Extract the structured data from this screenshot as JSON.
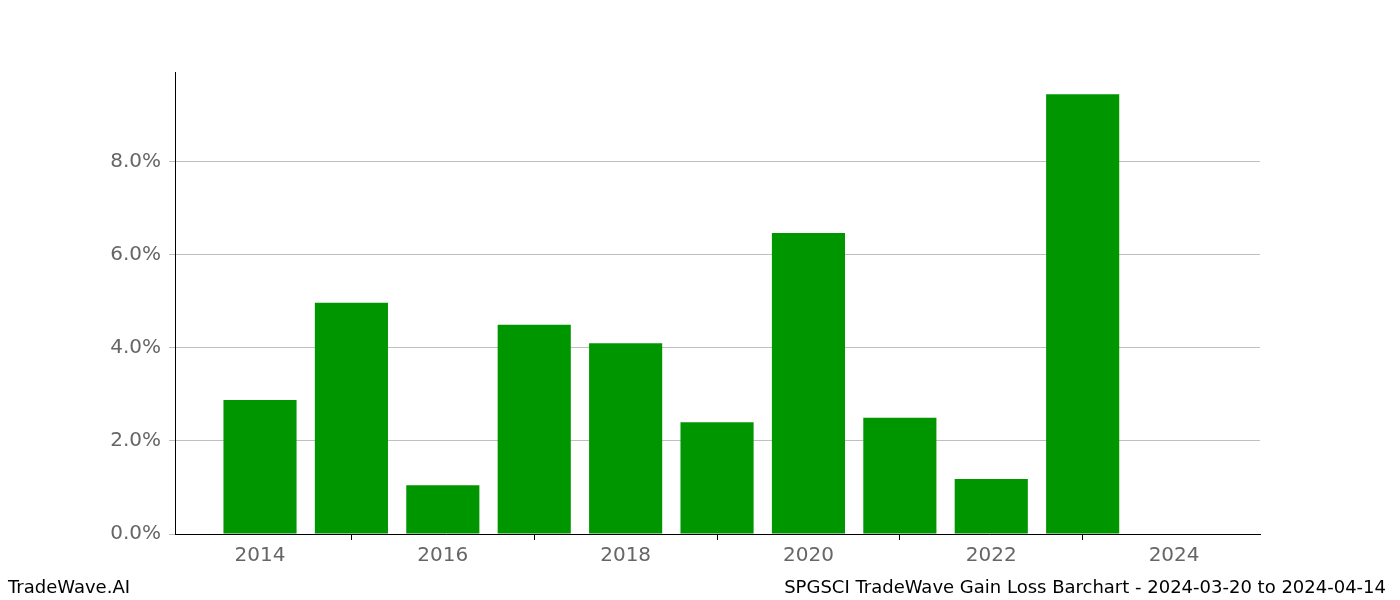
{
  "chart_data": {
    "type": "bar",
    "title": "SPGSCI TradeWave Gain Loss Barchart - 2024-03-20 to 2024-04-14",
    "annotations": [
      "TradeWave.AI"
    ],
    "x": [
      2014,
      2015,
      2016,
      2017,
      2018,
      2019,
      2020,
      2021,
      2022,
      2023
    ],
    "values": [
      2.88,
      4.97,
      1.05,
      4.5,
      4.1,
      2.4,
      6.47,
      2.5,
      1.18,
      9.45
    ],
    "color": "#009600",
    "xlim": [
      2013.07,
      2024.94
    ],
    "xticks": [
      2014,
      2016,
      2018,
      2020,
      2022,
      2024
    ],
    "ylim": [
      0,
      9.93
    ],
    "yticks": [
      {
        "value": 0,
        "label": "0.0%"
      },
      {
        "value": 2,
        "label": "2.0%"
      },
      {
        "value": 4,
        "label": "4.0%"
      },
      {
        "value": 6,
        "label": "6.0%"
      },
      {
        "value": 8,
        "label": "8.0%"
      }
    ],
    "grid": true
  }
}
